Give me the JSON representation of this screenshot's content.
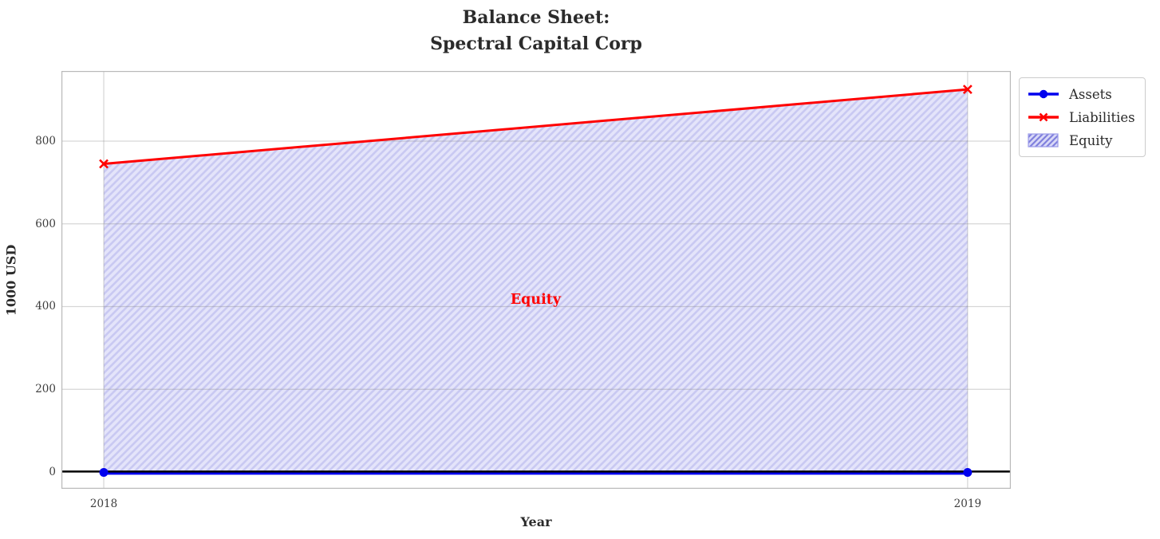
{
  "title": {
    "line1": "Balance Sheet:",
    "line2": "Spectral Capital Corp"
  },
  "axes": {
    "xlabel": "Year",
    "ylabel": "1000 USD"
  },
  "legend": {
    "items": [
      {
        "label": "Assets",
        "marker": "line-circle",
        "color": "#0000ee"
      },
      {
        "label": "Liabilities",
        "marker": "line-x",
        "color": "#ff0000"
      },
      {
        "label": "Equity",
        "marker": "hatched-patch",
        "fill": "#d9d9f7",
        "hatch_color": "#8080dd",
        "edge_color": "#9a9ae8"
      }
    ]
  },
  "chart_data": {
    "type": "area",
    "title": "Balance Sheet:\nSpectral Capital Corp",
    "xlabel": "Year",
    "ylabel": "1000 USD",
    "x": [
      2018,
      2019
    ],
    "series": [
      {
        "name": "Assets",
        "values": [
          0,
          0
        ],
        "color": "#0000ee",
        "marker": "circle",
        "linewidth": 3.2
      },
      {
        "name": "Liabilities",
        "values": [
          745,
          925
        ],
        "color": "#ff0000",
        "marker": "x",
        "linewidth": 3
      }
    ],
    "area": {
      "name": "Equity",
      "between": [
        "Assets",
        "Liabilities"
      ],
      "fill": "#e4e4fa",
      "hatch_color": "#c9c9f2",
      "hatch": "//"
    },
    "zero_line": {
      "y": 0,
      "color": "#000000",
      "linewidth": 2.5
    },
    "annotation": {
      "text": "Equity",
      "x": 2018.5,
      "y": 418,
      "color": "#ff0000"
    },
    "xticks": [
      2018,
      2019
    ],
    "xticklabels": [
      "2018",
      "2019"
    ],
    "yticks": [
      0,
      200,
      400,
      600,
      800
    ],
    "yticklabels": [
      "0",
      "200",
      "400",
      "600",
      "800"
    ],
    "xlim": [
      2017.951,
      2019.05
    ],
    "ylim": [
      -40.5,
      969.6
    ],
    "grid": true,
    "grid_color": "#d8d8d8",
    "spine_color": "#b9b9b9",
    "legend_position": "upper right outside"
  }
}
